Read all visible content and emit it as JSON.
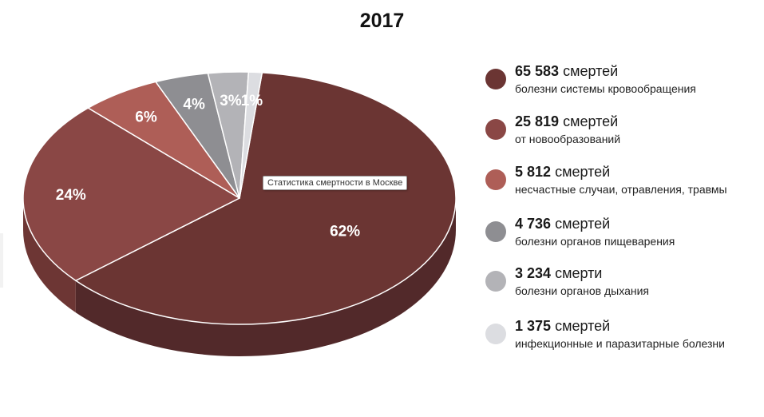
{
  "chart_data": {
    "type": "pie",
    "title": "2017",
    "tooltip": "Статистика смертности в Москве",
    "slices": [
      {
        "label": "62%",
        "percent": 62,
        "color": "#6b3533",
        "side": "#52292a",
        "count": "65 583",
        "unit": "смертей",
        "category": "болезни системы кровообращения"
      },
      {
        "label": "24%",
        "percent": 24,
        "color": "#8a4745",
        "side": "#6d3634",
        "count": "25 819",
        "unit": "смертей",
        "category": "от новообразований"
      },
      {
        "label": "6%",
        "percent": 6,
        "color": "#ae5e57",
        "side": "#8b4742",
        "count": "5 812",
        "unit": "смертей",
        "category": "несчастные случаи, отравления, травмы"
      },
      {
        "label": "4%",
        "percent": 4,
        "color": "#8e8e92",
        "side": "#6f6f73",
        "count": "4 736",
        "unit": "смертей",
        "category": "болезни органов пищеварения"
      },
      {
        "label": "3%",
        "percent": 3,
        "color": "#b3b3b7",
        "side": "#939397",
        "count": "3 234",
        "unit": "смерти",
        "category": "болезни органов дыхания"
      },
      {
        "label": "1%",
        "percent": 1,
        "color": "#dcdde1",
        "side": "#bcbdc1",
        "count": "1 375",
        "unit": "смертей",
        "category": "инфекционные и паразитарные болезни"
      }
    ]
  }
}
